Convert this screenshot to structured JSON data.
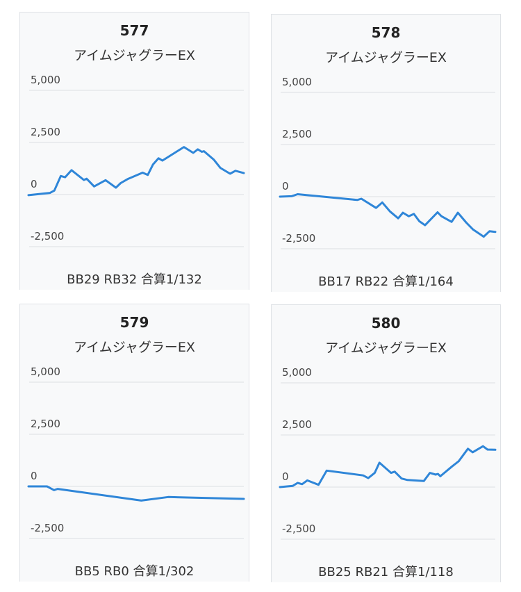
{
  "chart_data": [
    {
      "type": "line",
      "title": "577",
      "subtitle": "アイムジャグラーEX",
      "footer": "BB29 RB32 合算1/132",
      "yticks": [
        "5,000",
        "2,500",
        "0",
        "-2,500"
      ],
      "ylim": [
        -2500,
        5000
      ],
      "grid": true,
      "x": [
        0,
        0.1,
        0.12,
        0.15,
        0.17,
        0.2,
        0.257,
        0.27,
        0.305,
        0.358,
        0.406,
        0.428,
        0.46,
        0.53,
        0.554,
        0.578,
        0.604,
        0.622,
        0.722,
        0.765,
        0.786,
        0.805,
        0.815,
        0.861,
        0.891,
        0.936,
        0.961,
        1.0
      ],
      "values": [
        -30,
        80,
        190,
        890,
        830,
        1170,
        700,
        760,
        390,
        690,
        330,
        550,
        740,
        1050,
        940,
        1440,
        1740,
        1630,
        2280,
        2000,
        2170,
        2050,
        2080,
        1670,
        1280,
        1000,
        1140,
        1030
      ]
    },
    {
      "type": "line",
      "title": "578",
      "subtitle": "アイムジャグラーEX",
      "footer": "BB17 RB22 合算1/164",
      "yticks": [
        "5,000",
        "2,500",
        "0",
        "-2,500"
      ],
      "ylim": [
        -2500,
        5000
      ],
      "grid": true,
      "x": [
        0,
        0.054,
        0.082,
        0.359,
        0.378,
        0.446,
        0.475,
        0.511,
        0.549,
        0.571,
        0.598,
        0.622,
        0.647,
        0.674,
        0.732,
        0.75,
        0.797,
        0.826,
        0.864,
        0.897,
        0.946,
        0.973,
        1.0
      ],
      "values": [
        0,
        20,
        115,
        -160,
        -100,
        -540,
        -280,
        -710,
        -1040,
        -770,
        -940,
        -830,
        -1180,
        -1370,
        -750,
        -940,
        -1210,
        -770,
        -1230,
        -1580,
        -1920,
        -1660,
        -1690
      ]
    },
    {
      "type": "line",
      "title": "579",
      "subtitle": "アイムジャグラーEX",
      "footer": "BB5 RB0 合算1/302",
      "yticks": [
        "5,000",
        "2,500",
        "0",
        "-2,500"
      ],
      "ylim": [
        -2500,
        5000
      ],
      "grid": true,
      "x": [
        0,
        0.086,
        0.119,
        0.135,
        0.524,
        0.649,
        1.0
      ],
      "values": [
        0,
        0,
        -180,
        -120,
        -680,
        -510,
        -600
      ]
    },
    {
      "type": "line",
      "title": "580",
      "subtitle": "アイムジャグラーEX",
      "footer": "BB25 RB21 合算1/118",
      "yticks": [
        "5,000",
        "2,500",
        "0",
        "-2,500"
      ],
      "ylim": [
        -2500,
        5000
      ],
      "grid": true,
      "x": [
        0,
        0.06,
        0.082,
        0.103,
        0.127,
        0.179,
        0.217,
        0.386,
        0.41,
        0.44,
        0.462,
        0.516,
        0.533,
        0.565,
        0.592,
        0.668,
        0.696,
        0.723,
        0.734,
        0.745,
        0.799,
        0.83,
        0.873,
        0.895,
        0.943,
        0.964,
        1.0
      ],
      "values": [
        0,
        60,
        200,
        140,
        320,
        110,
        790,
        560,
        430,
        680,
        1170,
        680,
        740,
        410,
        340,
        290,
        680,
        600,
        630,
        520,
        990,
        1240,
        1840,
        1670,
        1960,
        1800,
        1790
      ]
    }
  ],
  "colors": {
    "line": "#2f86d8",
    "grid": "#dcdfe3"
  }
}
